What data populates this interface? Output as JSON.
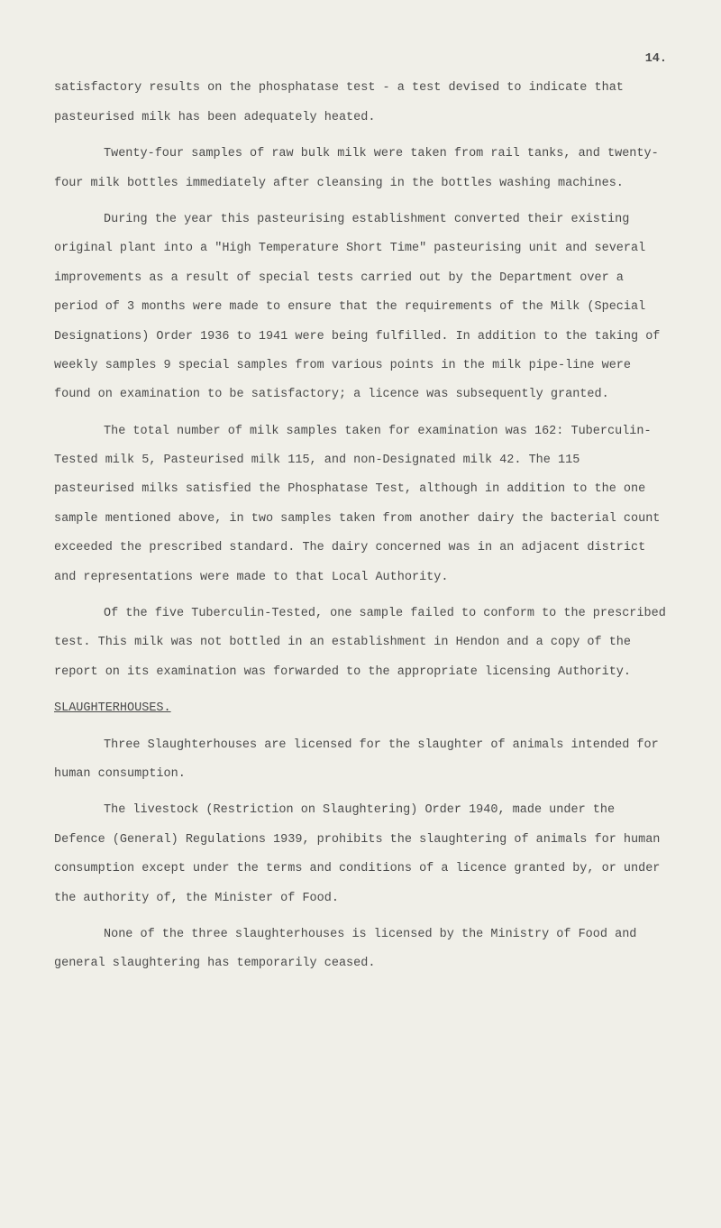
{
  "page_number": "14.",
  "paragraphs": {
    "p1": "satisfactory results on the phosphatase test - a test devised to indicate that pasteurised milk has been adequately heated.",
    "p2": "Twenty-four samples of raw bulk milk were taken from rail tanks, and twenty-four milk bottles immediately after cleansing in the bottles washing machines.",
    "p3": "During the year this pasteurising establishment converted their existing original plant into a \"High Temperature Short Time\" pasteurising unit and several improvements as a result of special tests carried out by the Depart­ment over a period of 3 months were made to ensure that the requirements of the Milk (Special Designations) Order 1936 to 1941 were being fulfilled. In addition to the taking of weekly samples 9 special samples from various points in the milk pipe-line were found on examination to be satisfactory; a licence was subsequent­ly granted.",
    "p4": "The total number of milk samples taken for examination was 162: Tuberculin-Tested milk 5, Pasteurised milk 115, and non-Designated milk 42. The 115 pasteurised milks satisfied the Phosphatase Test, although in addition to the one sample mentioned above, in two samples taken from another dairy the bacterial count exceeded the prescribed standard. The dairy concerned was in an adjacent district and representations were made to that Local Authority.",
    "p5": "Of the five Tuberculin-Tested, one sample failed to conform to the pre­scribed test. This milk was not bottled in an establishment in Hendon and a copy of the report on its examination was forwarded to the appropriate licensing Authority.",
    "heading1": "SLAUGHTERHOUSES.",
    "p6": "Three Slaughterhouses are licensed for the slaughter of animals intended for human consumption.",
    "p7": "The livestock (Restriction on Slaughtering) Order 1940, made under the Defence (General) Regulations 1939, prohibits the slaughtering of animals for human consumption except under the terms and conditions of a licence granted by, or under the authority of, the Minister of Food.",
    "p8": "None of the three slaughterhouses is licensed by the Ministry of Food and general slaughtering has temporarily ceased."
  }
}
